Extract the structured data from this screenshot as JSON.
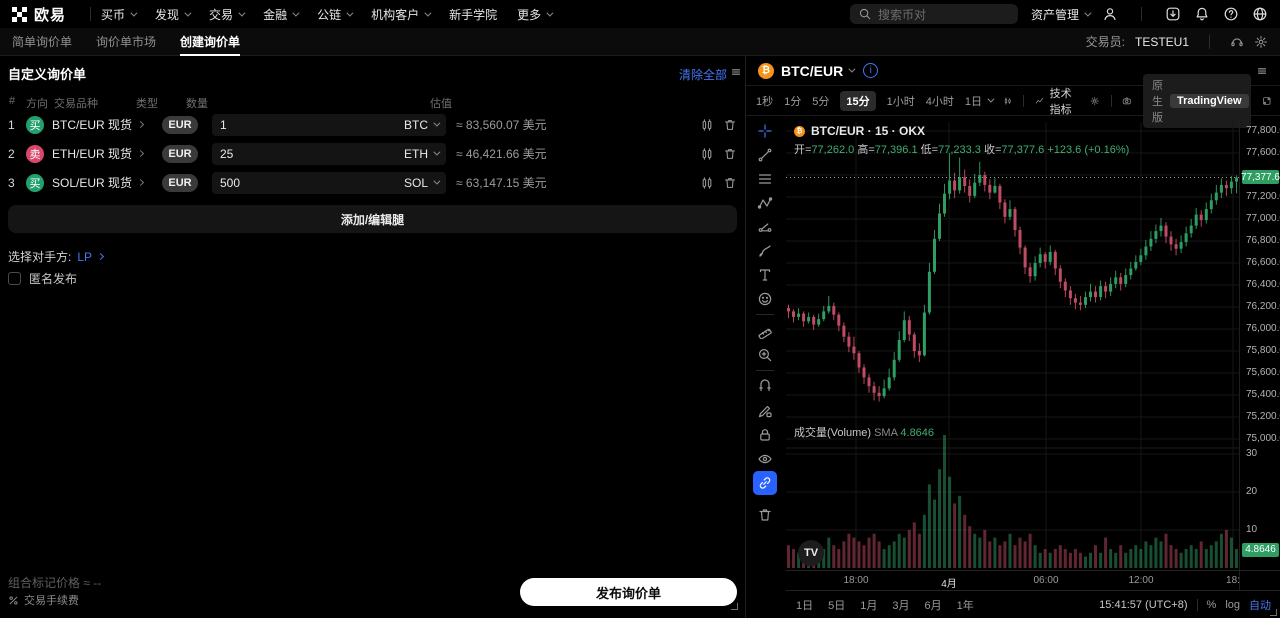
{
  "colors": {
    "accent": "#4775f2",
    "up": "#2f9e63",
    "down": "#c14b64",
    "buy": "#23a06d",
    "sell": "#d8486a",
    "last_price_bg": "#2f9e63"
  },
  "nav": {
    "logo_text": "欧易",
    "items": [
      "买币",
      "发现",
      "交易",
      "金融",
      "公链",
      "机构客户",
      "新手学院",
      "更多"
    ],
    "search_placeholder": "搜索币对",
    "asset_mgmt": "资产管理"
  },
  "subnav": {
    "tabs": [
      "简单询价单",
      "询价单市场",
      "创建询价单"
    ],
    "trader_label": "交易员:",
    "trader_name": "TESTEU1"
  },
  "panel": {
    "title": "自定义询价单",
    "clear_all": "清除全部",
    "headers": {
      "idx": "#",
      "side": "方向",
      "pair": "交易品种",
      "type": "类型",
      "qty": "数量",
      "value": "估值"
    },
    "rows": [
      {
        "idx": "1",
        "side": "买",
        "side_type": "buy",
        "pair": "BTC/EUR 现货",
        "type": "EUR",
        "qty": "1",
        "unit": "BTC",
        "value": "≈ 83,560.07 美元"
      },
      {
        "idx": "2",
        "side": "卖",
        "side_type": "sell",
        "pair": "ETH/EUR 现货",
        "type": "EUR",
        "qty": "25",
        "unit": "ETH",
        "value": "≈ 46,421.66 美元"
      },
      {
        "idx": "3",
        "side": "买",
        "side_type": "buy",
        "pair": "SOL/EUR 现货",
        "type": "EUR",
        "qty": "500",
        "unit": "SOL",
        "value": "≈ 63,147.15 美元"
      }
    ],
    "add_button": "添加/编辑腿",
    "counterparty_label": "选择对手方:",
    "counterparty_value": "LP",
    "anonymous_label": "匿名发布",
    "mark_price_label": "组合标记价格",
    "mark_price_value": "≈ --",
    "fee_label": "交易手续费",
    "publish_button": "发布询价单"
  },
  "chart": {
    "symbol": "BTC/EUR",
    "timeframes": [
      "1秒",
      "1分",
      "5分",
      "15分",
      "1小时",
      "4小时",
      "1日"
    ],
    "active_timeframe": "15分",
    "indicators_label": "技术指标",
    "native_label": "原生版",
    "tv_label": "TradingView",
    "legend_title": "BTC/EUR · 15 · OKX",
    "open_label": "开=",
    "open": "77,262.0",
    "high_label": "高=",
    "high": "77,396.1",
    "low_label": "低=",
    "low": "77,233.3",
    "close_label": "收=",
    "close": "77,377.6",
    "change": "+123.6 (+0.16%)",
    "volume_label": "成交量(Volume)",
    "sma_label": "SMA",
    "sma_value": "4.8646",
    "last_price_label": "77,377.6",
    "ranges": [
      "1日",
      "5日",
      "1月",
      "3月",
      "6月",
      "1年"
    ],
    "clock": "15:41:57 (UTC+8)",
    "percent_label": "%",
    "log_label": "log",
    "auto_label": "自动"
  },
  "chart_data": {
    "type": "candlestick",
    "title": "BTC/EUR · 15 · OKX",
    "interval_minutes": 15,
    "ylim": [
      75000,
      77850
    ],
    "grid": true,
    "last_price": 77377.6,
    "last_volume": 4.8646,
    "price_ticks": [
      77800,
      77600,
      77200,
      77000,
      76800,
      76600,
      76400,
      76200,
      76000,
      75800,
      75600,
      75400,
      75200,
      75000
    ],
    "vol_ticks": [
      30,
      20,
      10
    ],
    "time_ticks": [
      {
        "label": "18:00",
        "x": 70
      },
      {
        "label": "4月",
        "x": 163,
        "major": true
      },
      {
        "label": "06:00",
        "x": 260
      },
      {
        "label": "12:00",
        "x": 355
      },
      {
        "label": "18:",
        "x": 447
      }
    ],
    "first_open": 76190,
    "closes": [
      76160,
      76110,
      76140,
      76070,
      76110,
      76040,
      76090,
      76160,
      76210,
      76130,
      76030,
      75930,
      75840,
      75780,
      75650,
      75560,
      75480,
      75420,
      75390,
      75460,
      75560,
      75720,
      75900,
      76080,
      75950,
      75800,
      75760,
      76150,
      76520,
      76820,
      77050,
      77230,
      77350,
      77260,
      77380,
      77300,
      77210,
      77330,
      77400,
      77310,
      77240,
      77300,
      77150,
      77020,
      77090,
      76900,
      76740,
      76560,
      76480,
      76600,
      76680,
      76610,
      76700,
      76550,
      76430,
      76350,
      76280,
      76240,
      76220,
      76290,
      76340,
      76290,
      76390,
      76340,
      76410,
      76470,
      76410,
      76490,
      76550,
      76610,
      76670,
      76750,
      76820,
      76890,
      76940,
      76840,
      76770,
      76730,
      76790,
      76870,
      76940,
      77040,
      76990,
      77090,
      77170,
      77240,
      77310,
      77280,
      77340,
      77377.6
    ],
    "highs": [
      76220,
      76180,
      76190,
      76160,
      76150,
      76130,
      76140,
      76210,
      76300,
      76240,
      76150,
      76060,
      75970,
      75930,
      75800,
      75680,
      75590,
      75520,
      75480,
      75540,
      75640,
      75790,
      75980,
      76160,
      76120,
      75970,
      75870,
      76220,
      76600,
      76900,
      77140,
      77320,
      77600,
      77420,
      77560,
      77450,
      77360,
      77410,
      77520,
      77430,
      77360,
      77370,
      77320,
      77180,
      77170,
      77110,
      76930,
      76760,
      76600,
      76660,
      76740,
      76700,
      76760,
      76720,
      76580,
      76460,
      76390,
      76320,
      76300,
      76340,
      76410,
      76390,
      76440,
      76430,
      76470,
      76530,
      76510,
      76550,
      76610,
      76670,
      76730,
      76810,
      76890,
      76950,
      77010,
      76970,
      76890,
      76820,
      76850,
      76930,
      77000,
      77100,
      77080,
      77150,
      77230,
      77310,
      77370,
      77350,
      77390,
      77396.1
    ],
    "lows": [
      76100,
      76060,
      76080,
      76020,
      76050,
      75990,
      76020,
      76070,
      76140,
      76080,
      75980,
      75880,
      75790,
      75720,
      75600,
      75500,
      75420,
      75350,
      75340,
      75370,
      75440,
      75530,
      75700,
      75880,
      75890,
      75740,
      75700,
      75750,
      76130,
      76500,
      76800,
      77020,
      77180,
      77190,
      77230,
      77240,
      77150,
      77190,
      77300,
      77250,
      77180,
      77230,
      77090,
      76960,
      76990,
      76840,
      76680,
      76500,
      76420,
      76440,
      76560,
      76550,
      76580,
      76490,
      76370,
      76290,
      76220,
      76180,
      76170,
      76190,
      76250,
      76240,
      76260,
      76280,
      76300,
      76370,
      76350,
      76380,
      76450,
      76530,
      76580,
      76630,
      76710,
      76780,
      76840,
      76780,
      76710,
      76670,
      76690,
      76750,
      76830,
      76910,
      76930,
      76960,
      77050,
      77130,
      77190,
      77210,
      77230,
      77233.3
    ],
    "volumes": [
      6,
      5,
      4,
      5,
      3,
      4,
      3,
      5,
      8,
      6,
      5,
      7,
      9,
      8,
      7,
      6,
      8,
      9,
      7,
      5,
      6,
      7,
      9,
      8,
      10,
      12,
      9,
      14,
      22,
      18,
      26,
      35,
      24,
      17,
      19,
      14,
      11,
      9,
      8,
      10,
      7,
      8,
      6,
      7,
      9,
      6,
      8,
      7,
      9,
      6,
      4,
      5,
      4,
      5,
      6,
      5,
      4,
      5,
      4,
      3,
      4,
      6,
      4,
      8,
      5,
      4,
      6,
      4,
      5,
      6,
      5,
      7,
      6,
      8,
      7,
      9,
      6,
      5,
      4,
      5,
      6,
      5,
      7,
      5,
      6,
      7,
      9,
      10,
      8,
      5
    ]
  }
}
